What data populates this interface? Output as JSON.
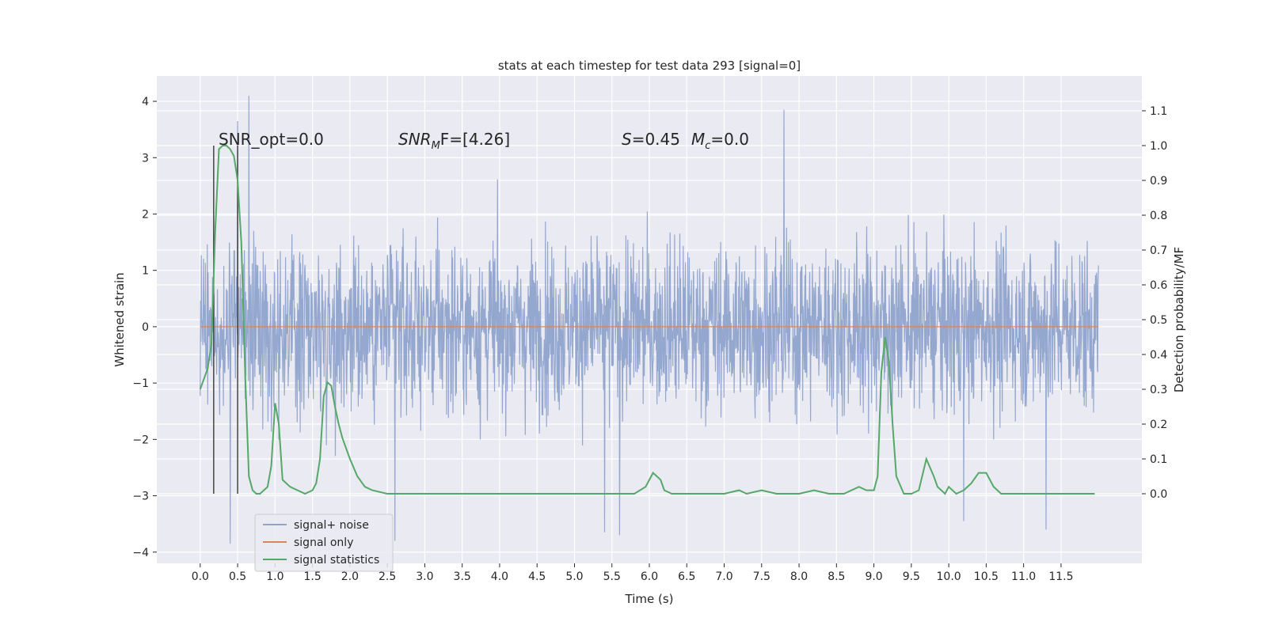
{
  "chart_data": {
    "type": "line",
    "title": "stats at each timestep for test data 293 [signal=0]",
    "xlabel": "Time (s)",
    "ylabel": "Whitened strain",
    "y2label": "Detection probability/MF",
    "xlim": [
      -0.58,
      12.58
    ],
    "ylim": [
      -4.2,
      4.45
    ],
    "y2lim": [
      -0.2,
      1.2
    ],
    "xticks": [
      "0.0",
      "0.5",
      "1.0",
      "1.5",
      "2.0",
      "2.5",
      "3.0",
      "3.5",
      "4.0",
      "4.5",
      "5.0",
      "5.5",
      "6.0",
      "6.5",
      "7.0",
      "7.5",
      "8.0",
      "8.5",
      "9.0",
      "9.5",
      "10.0",
      "10.5",
      "11.0",
      "11.5"
    ],
    "yticks": [
      "4",
      "3",
      "2",
      "1",
      "0",
      "−1",
      "−2",
      "−3",
      "−4"
    ],
    "y2ticks": [
      "1.1",
      "1.0",
      "0.9",
      "0.8",
      "0.7",
      "0.6",
      "0.5",
      "0.4",
      "0.3",
      "0.2",
      "0.1",
      "0.0"
    ],
    "grid": true,
    "legend_position": "lower-left",
    "annotations": {
      "snr_opt": "SNR_opt=0.0",
      "snr_mf_prefix": "SNR",
      "snr_mf_sub": "M",
      "snr_mf_suffix": "F=[4.26]",
      "s_label": "S",
      "s_value": "=0.45",
      "mc_label": "M",
      "mc_sub": "c",
      "mc_value": "=0.0"
    },
    "vertical_markers": [
      0.18,
      0.5
    ],
    "series": [
      {
        "name": "signal+ noise",
        "color": "#8fa3cc",
        "description_kind": "noise",
        "x_range": [
          0.0,
          12.0
        ],
        "envelope": [
          -2.0,
          2.0
        ],
        "notable_spikes": [
          {
            "x": 0.65,
            "y": 4.1
          },
          {
            "x": 0.5,
            "y": 3.65
          },
          {
            "x": 0.4,
            "y": -3.85
          },
          {
            "x": 2.6,
            "y": -3.8
          },
          {
            "x": 5.4,
            "y": -3.65
          },
          {
            "x": 5.6,
            "y": -3.7
          },
          {
            "x": 7.8,
            "y": 3.85
          },
          {
            "x": 11.3,
            "y": -3.6
          },
          {
            "x": 10.2,
            "y": -3.45
          }
        ]
      },
      {
        "name": "signal only",
        "color": "#dd8452",
        "x_range": [
          0.0,
          12.0
        ],
        "values_const": 0.0
      },
      {
        "name": "signal statistics",
        "color": "#55a868",
        "axis": "right",
        "x": [
          0.0,
          0.1,
          0.15,
          0.2,
          0.25,
          0.3,
          0.35,
          0.4,
          0.45,
          0.5,
          0.55,
          0.6,
          0.65,
          0.7,
          0.75,
          0.8,
          0.9,
          0.95,
          1.0,
          1.05,
          1.1,
          1.2,
          1.3,
          1.4,
          1.5,
          1.55,
          1.6,
          1.65,
          1.7,
          1.75,
          1.8,
          1.85,
          1.9,
          2.0,
          2.1,
          2.2,
          2.3,
          2.5,
          3.0,
          4.0,
          4.5,
          5.0,
          5.5,
          5.8,
          5.95,
          6.05,
          6.1,
          6.15,
          6.2,
          6.3,
          6.5,
          7.0,
          7.2,
          7.3,
          7.5,
          7.7,
          7.8,
          8.0,
          8.2,
          8.4,
          8.6,
          8.8,
          8.9,
          9.0,
          9.05,
          9.1,
          9.15,
          9.2,
          9.25,
          9.3,
          9.4,
          9.5,
          9.6,
          9.7,
          9.8,
          9.85,
          9.9,
          9.95,
          10.0,
          10.1,
          10.2,
          10.3,
          10.4,
          10.5,
          10.6,
          10.7,
          10.8,
          10.9,
          11.0,
          11.5,
          11.9,
          11.95
        ],
        "values": [
          0.3,
          0.36,
          0.43,
          0.75,
          0.99,
          1.0,
          1.0,
          0.99,
          0.97,
          0.9,
          0.72,
          0.35,
          0.05,
          0.01,
          0.0,
          0.0,
          0.02,
          0.08,
          0.26,
          0.2,
          0.04,
          0.02,
          0.01,
          0.0,
          0.01,
          0.03,
          0.1,
          0.28,
          0.32,
          0.31,
          0.25,
          0.2,
          0.16,
          0.1,
          0.05,
          0.02,
          0.01,
          0.0,
          0.0,
          0.0,
          0.0,
          0.0,
          0.0,
          0.0,
          0.02,
          0.06,
          0.05,
          0.04,
          0.01,
          0.0,
          0.0,
          0.0,
          0.01,
          0.0,
          0.01,
          0.0,
          0.0,
          0.0,
          0.01,
          0.0,
          0.0,
          0.02,
          0.01,
          0.01,
          0.05,
          0.35,
          0.45,
          0.38,
          0.2,
          0.05,
          0.0,
          0.0,
          0.01,
          0.1,
          0.05,
          0.02,
          0.01,
          0.0,
          0.02,
          0.0,
          0.01,
          0.03,
          0.06,
          0.06,
          0.02,
          0.0,
          0.0,
          0.0,
          0.0,
          0.0,
          0.0,
          0.0
        ]
      }
    ]
  }
}
